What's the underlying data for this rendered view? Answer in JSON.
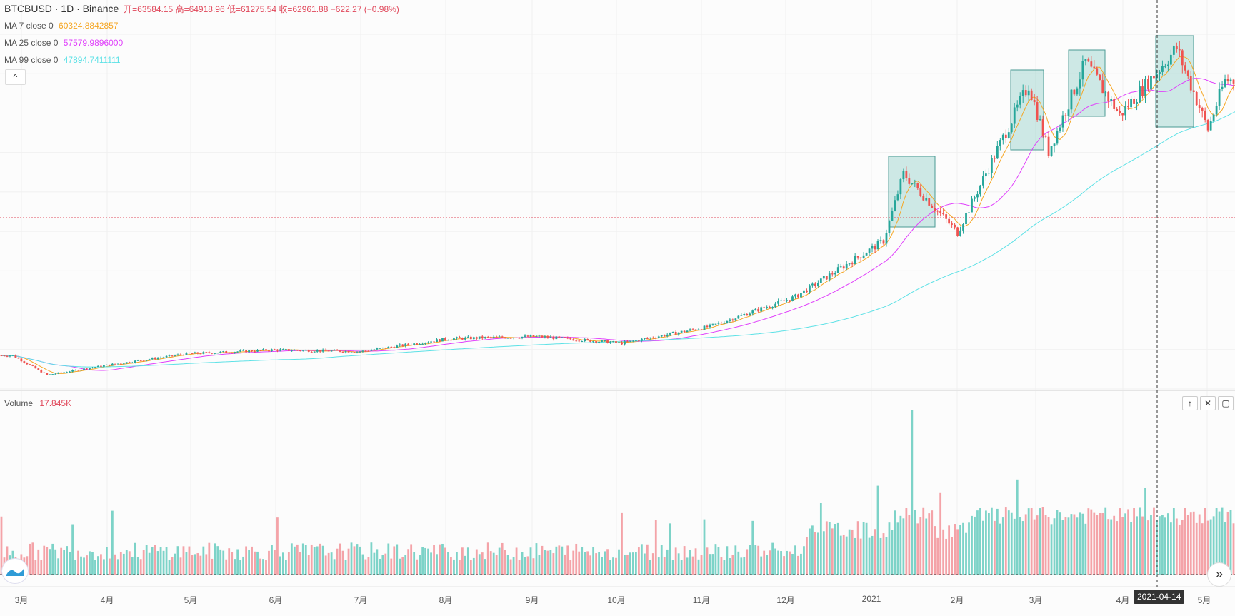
{
  "header": {
    "symbol": "BTCBUSD · 1D · Binance",
    "ohlc": "开=63584.15 高=64918.96 低=61275.54 收=62961.88 −622.27 (−0.98%)"
  },
  "indicators": [
    {
      "label": "MA 7 close 0",
      "value": "60324.8842857",
      "color": "#f5a623"
    },
    {
      "label": "MA 25 close 0",
      "value": "57579.9896000",
      "color": "#e040fb"
    },
    {
      "label": "MA 99 close 0",
      "value": "47894.7411111",
      "color": "#5ce1e6"
    }
  ],
  "collapse_icon": "^",
  "volume": {
    "label": "Volume",
    "value": "17.845K"
  },
  "pane_buttons": {
    "up": "↑",
    "close": "✕",
    "maximize": "▢"
  },
  "scroll_button": "»",
  "x_axis": {
    "labels": [
      "3月",
      "4月",
      "5月",
      "6月",
      "7月",
      "8月",
      "9月",
      "10月",
      "11月",
      "12月",
      "2021",
      "2月",
      "3月",
      "4月",
      "5月"
    ]
  },
  "crosshair_date": "2021-04-14",
  "colors": {
    "up": "#26a69a",
    "down": "#ef5350",
    "price_line": "#e0475a",
    "box": "#5fb8b0"
  },
  "chart_data": {
    "type": "candlestick",
    "title": "BTCBUSD · 1D · Binance",
    "x_range": [
      "2020-03",
      "2021-05"
    ],
    "close_approx": [
      {
        "date": "2020-03-01",
        "close": 8500
      },
      {
        "date": "2020-03-13",
        "close": 5000
      },
      {
        "date": "2020-04-01",
        "close": 6600
      },
      {
        "date": "2020-05-01",
        "close": 8800
      },
      {
        "date": "2020-06-01",
        "close": 9500
      },
      {
        "date": "2020-07-01",
        "close": 9200
      },
      {
        "date": "2020-08-01",
        "close": 11500
      },
      {
        "date": "2020-09-01",
        "close": 11900
      },
      {
        "date": "2020-10-01",
        "close": 10700
      },
      {
        "date": "2020-11-01",
        "close": 13700
      },
      {
        "date": "2020-12-01",
        "close": 19000
      },
      {
        "date": "2021-01-01",
        "close": 29000
      },
      {
        "date": "2021-01-08",
        "close": 41000
      },
      {
        "date": "2021-01-27",
        "close": 30500
      },
      {
        "date": "2021-02-21",
        "close": 57000
      },
      {
        "date": "2021-02-28",
        "close": 45000
      },
      {
        "date": "2021-03-13",
        "close": 61000
      },
      {
        "date": "2021-03-25",
        "close": 51500
      },
      {
        "date": "2021-04-14",
        "close": 63500
      },
      {
        "date": "2021-04-25",
        "close": 49000
      },
      {
        "date": "2021-05-01",
        "close": 57800
      }
    ],
    "moving_averages": [
      "MA 7",
      "MA 25",
      "MA 99"
    ],
    "current_price": 62961.88,
    "volume_peak": "2021-01-11"
  }
}
